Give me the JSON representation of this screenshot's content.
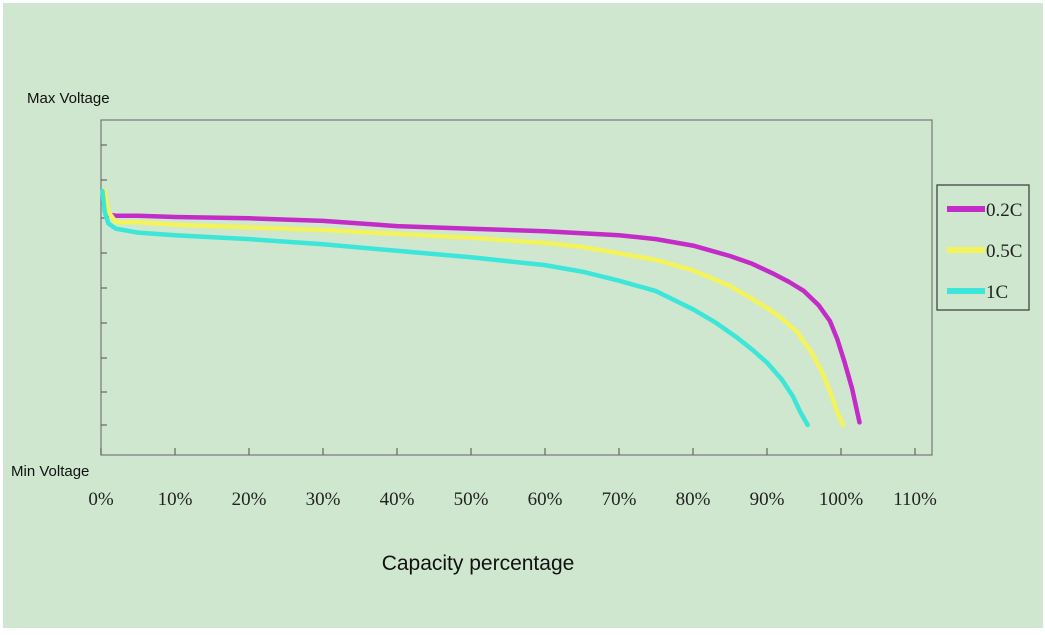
{
  "chart_data": {
    "type": "line",
    "title": "",
    "xlabel": "Capacity percentage",
    "ylabel_top": "Max Voltage",
    "ylabel_bottom": "Min Voltage",
    "xlim": [
      0,
      110
    ],
    "ylim": [
      0,
      100
    ],
    "x_ticks": [
      "0%",
      "10%",
      "20%",
      "30%",
      "40%",
      "50%",
      "60%",
      "70%",
      "80%",
      "90%",
      "100%",
      "110%"
    ],
    "grid": false,
    "legend_position": "right",
    "series": [
      {
        "name": "0.2C",
        "color": "#c42cc8",
        "x": [
          0.8,
          2,
          5,
          10,
          20,
          30,
          40,
          50,
          60,
          70,
          75,
          80,
          85,
          88,
          91,
          93,
          95,
          97,
          98.5,
          99.5,
          100.5,
          101.5,
          102.5
        ],
        "y": [
          81,
          80.5,
          80.5,
          80,
          79.5,
          78.5,
          76.5,
          75.5,
          74.5,
          73,
          71.5,
          69,
          65,
          62,
          58,
          55,
          51.5,
          46,
          40,
          33,
          24,
          14,
          1
        ]
      },
      {
        "name": "0.5C",
        "color": "#f3f35c",
        "x": [
          0.5,
          1,
          2,
          5,
          10,
          20,
          30,
          40,
          50,
          60,
          65,
          70,
          75,
          80,
          85,
          88,
          90,
          92,
          94,
          96,
          97.5,
          98.5,
          99.5,
          100.3
        ],
        "y": [
          90,
          82,
          78,
          78,
          77,
          76,
          75,
          73.5,
          72,
          70,
          68.5,
          66,
          63.5,
          59.5,
          53.5,
          48.5,
          45,
          41,
          36,
          28,
          20,
          13,
          5,
          0
        ]
      },
      {
        "name": "1C",
        "color": "#3ce6d8",
        "x": [
          0.2,
          0.5,
          1,
          2,
          5,
          10,
          20,
          30,
          40,
          50,
          60,
          65,
          70,
          75,
          80,
          83,
          86,
          88,
          90,
          92,
          93.5,
          94.5,
          95.5
        ],
        "y": [
          90,
          82,
          77.5,
          75.5,
          74,
          73,
          71.5,
          69.5,
          67,
          64.5,
          61.5,
          59,
          55.5,
          51.5,
          44.5,
          39.5,
          33.5,
          29,
          24,
          17.5,
          11,
          5,
          0
        ]
      }
    ]
  }
}
